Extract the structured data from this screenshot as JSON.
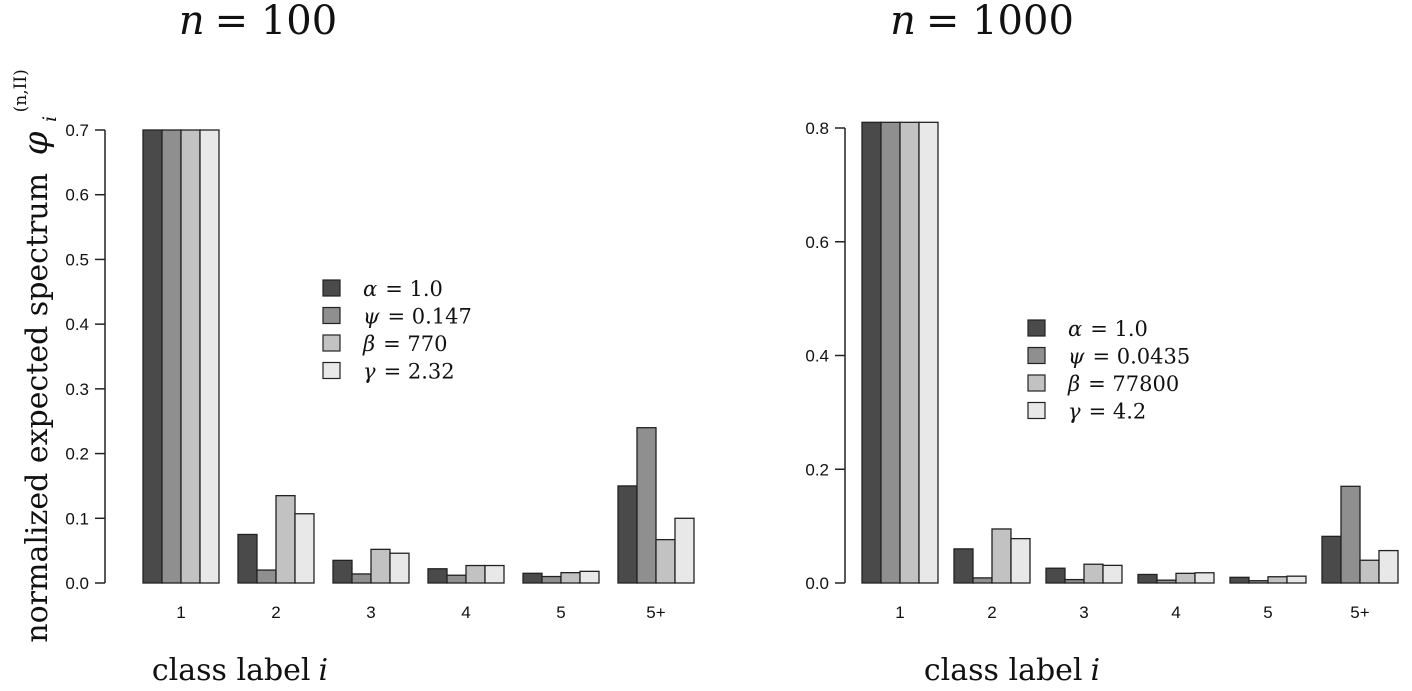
{
  "figure": {
    "ylabel": "normalized expected spectrum",
    "ylabel_symbol": "φ",
    "ylabel_sub": "i",
    "ylabel_sup": "(n,II)"
  },
  "colors": {
    "alpha": "#4a4a4a",
    "psi": "#8f8f8f",
    "beta": "#c2c2c2",
    "gamma": "#e8e8e8"
  },
  "chart_data": [
    {
      "type": "bar",
      "title_var": "n",
      "title_value": "= 100",
      "xlabel_text": "class label",
      "xlabel_var": "i",
      "categories": [
        "1",
        "2",
        "3",
        "4",
        "5",
        "5+"
      ],
      "ylim": [
        0,
        0.7
      ],
      "yticks": [
        "0.0",
        "0.1",
        "0.2",
        "0.3",
        "0.4",
        "0.5",
        "0.6",
        "0.7"
      ],
      "legend_position": "center",
      "series": [
        {
          "name_var": "α",
          "name_rest": "= 1.0",
          "color_key": "alpha",
          "values": [
            0.7,
            0.075,
            0.035,
            0.022,
            0.015,
            0.15
          ]
        },
        {
          "name_var": "ψ",
          "name_rest": "= 0.147",
          "color_key": "psi",
          "values": [
            0.7,
            0.02,
            0.014,
            0.012,
            0.01,
            0.24
          ]
        },
        {
          "name_var": "β",
          "name_rest": "= 770",
          "color_key": "beta",
          "values": [
            0.7,
            0.135,
            0.052,
            0.027,
            0.016,
            0.067
          ]
        },
        {
          "name_var": "γ",
          "name_rest": "= 2.32",
          "color_key": "gamma",
          "values": [
            0.7,
            0.107,
            0.046,
            0.027,
            0.018,
            0.1
          ]
        }
      ]
    },
    {
      "type": "bar",
      "title_var": "n",
      "title_value": "= 1000",
      "xlabel_text": "class label",
      "xlabel_var": "i",
      "categories": [
        "1",
        "2",
        "3",
        "4",
        "5",
        "5+"
      ],
      "ylim": [
        0,
        0.8
      ],
      "yticks": [
        "0.0",
        "0.2",
        "0.4",
        "0.6",
        "0.8"
      ],
      "legend_position": "center-right",
      "series": [
        {
          "name_var": "α",
          "name_rest": "= 1.0",
          "color_key": "alpha",
          "values": [
            0.81,
            0.06,
            0.026,
            0.015,
            0.01,
            0.082
          ]
        },
        {
          "name_var": "ψ",
          "name_rest": "= 0.0435",
          "color_key": "psi",
          "values": [
            0.81,
            0.009,
            0.006,
            0.005,
            0.004,
            0.17
          ]
        },
        {
          "name_var": "β",
          "name_rest": "= 77800",
          "color_key": "beta",
          "values": [
            0.81,
            0.095,
            0.033,
            0.017,
            0.011,
            0.04
          ]
        },
        {
          "name_var": "γ",
          "name_rest": "= 4.2",
          "color_key": "gamma",
          "values": [
            0.81,
            0.078,
            0.031,
            0.018,
            0.012,
            0.057
          ]
        }
      ]
    }
  ]
}
